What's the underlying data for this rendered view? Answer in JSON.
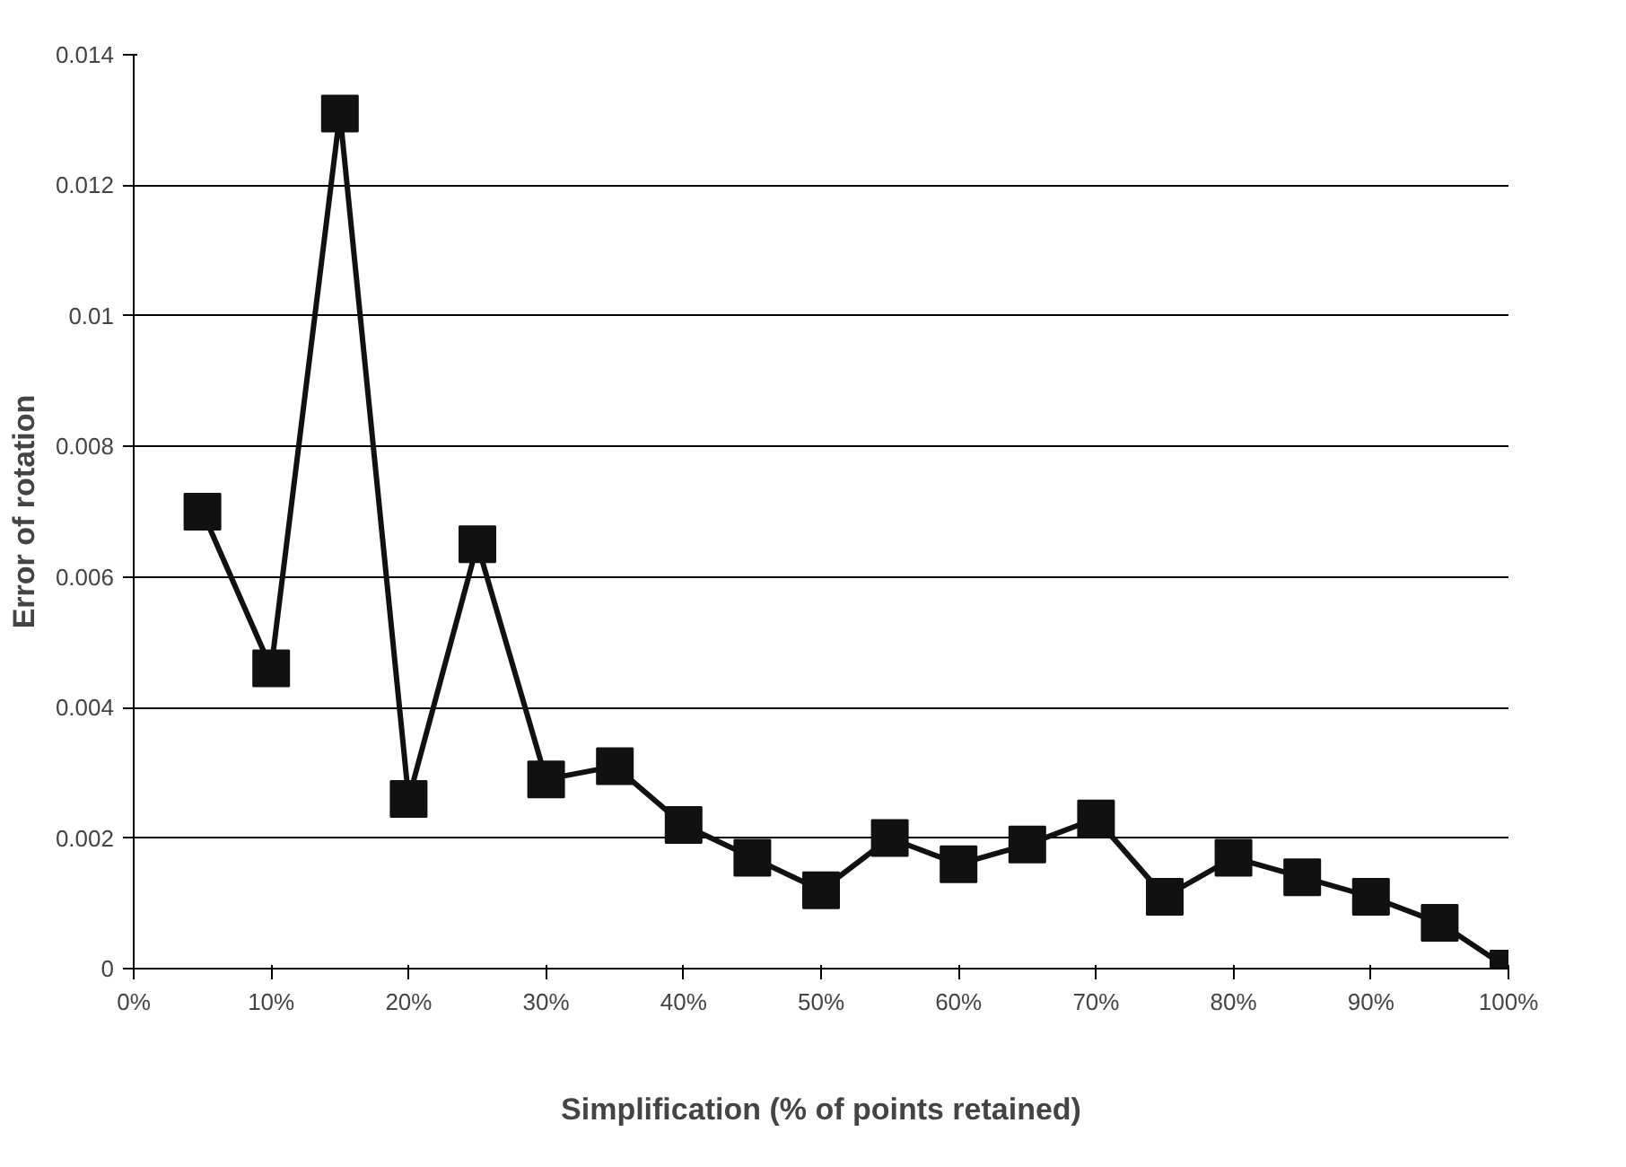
{
  "chart_data": {
    "type": "line",
    "xlabel": "Simplification (% of points retained)",
    "ylabel": "Error of rotation",
    "x": [
      5,
      10,
      15,
      20,
      25,
      30,
      35,
      40,
      45,
      50,
      55,
      60,
      65,
      70,
      75,
      80,
      85,
      90,
      95,
      100
    ],
    "series": [
      {
        "color": "#111111",
        "values": [
          0.007,
          0.0046,
          0.0131,
          0.0026,
          0.0065,
          0.0029,
          0.0031,
          0.0022,
          0.0017,
          0.0012,
          0.002,
          0.0016,
          0.0019,
          0.0023,
          0.0011,
          0.0017,
          0.0014,
          0.0011,
          0.0007,
          0.0
        ]
      }
    ],
    "xlim": [
      0,
      100
    ],
    "xticks": [
      {
        "value": 0,
        "label": "0%"
      },
      {
        "value": 10,
        "label": "10%"
      },
      {
        "value": 20,
        "label": "20%"
      },
      {
        "value": 30,
        "label": "30%"
      },
      {
        "value": 40,
        "label": "40%"
      },
      {
        "value": 50,
        "label": "50%"
      },
      {
        "value": 60,
        "label": "60%"
      },
      {
        "value": 70,
        "label": "70%"
      },
      {
        "value": 80,
        "label": "80%"
      },
      {
        "value": 90,
        "label": "90%"
      },
      {
        "value": 100,
        "label": "100%"
      }
    ],
    "ylim": [
      0,
      0.014
    ],
    "yticks": [
      0,
      0.002,
      0.004,
      0.006,
      0.008,
      0.01,
      0.012,
      0.014
    ],
    "grid": "y",
    "marker": "square",
    "line_style": "solid"
  }
}
